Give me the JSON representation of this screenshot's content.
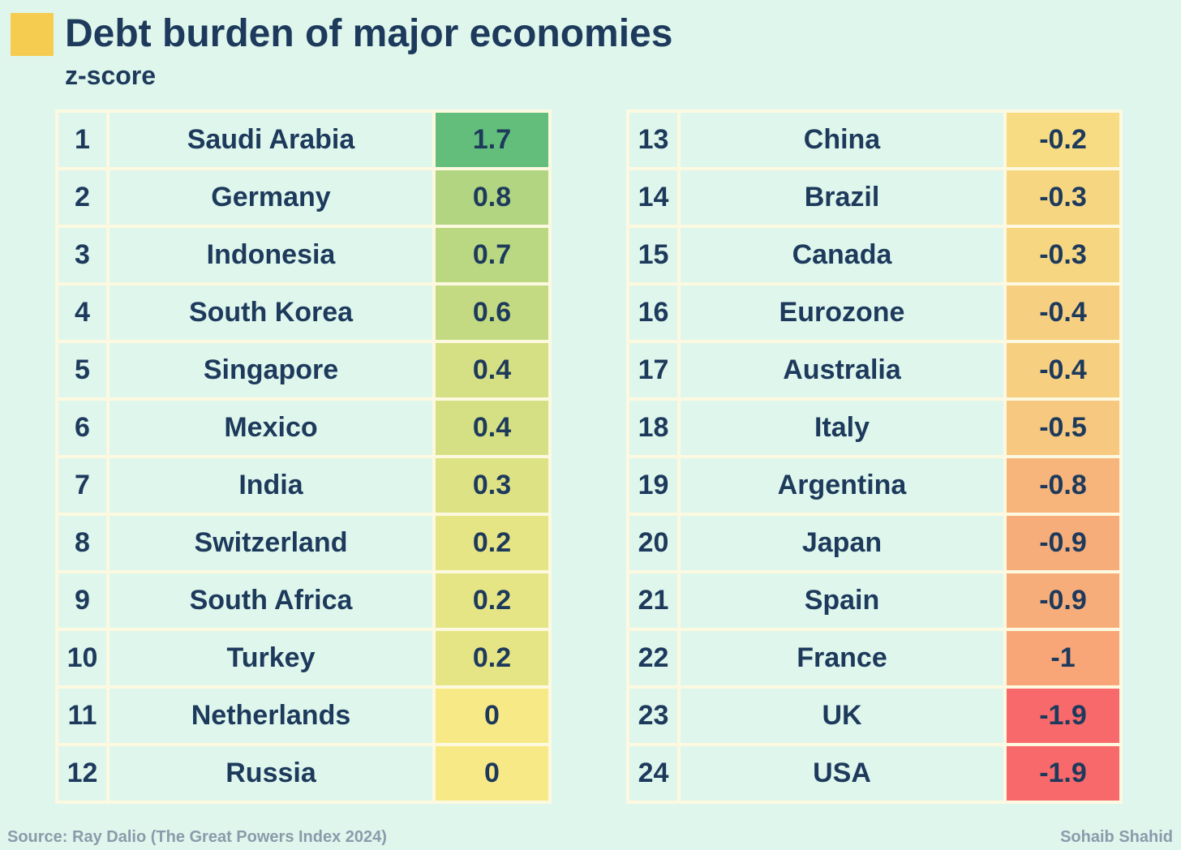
{
  "header": {
    "title": "Debt burden of major economies",
    "subtitle": "z-score"
  },
  "footer": {
    "source": "Source: Ray Dalio (The Great Powers Index 2024)",
    "author": "Sohaib Shahid"
  },
  "colors": {
    "background": "#dff6ec",
    "accent": "#f5cc4f",
    "text": "#1d3a5c",
    "grid": "#fdf9e0",
    "scale_high": "#63be7b",
    "scale_mid": "#f7ea86",
    "scale_low": "#f8696b"
  },
  "chart_data": {
    "type": "table",
    "title": "Debt burden of major economies",
    "subtitle": "z-score",
    "columns": [
      "rank",
      "country",
      "z-score"
    ],
    "color_scale": {
      "min": -1.9,
      "mid": 0,
      "max": 1.7
    },
    "rows": [
      {
        "rank": "1",
        "country": "Saudi Arabia",
        "value": "1.7"
      },
      {
        "rank": "2",
        "country": "Germany",
        "value": "0.8"
      },
      {
        "rank": "3",
        "country": "Indonesia",
        "value": "0.7"
      },
      {
        "rank": "4",
        "country": "South Korea",
        "value": "0.6"
      },
      {
        "rank": "5",
        "country": "Singapore",
        "value": "0.4"
      },
      {
        "rank": "6",
        "country": "Mexico",
        "value": "0.4"
      },
      {
        "rank": "7",
        "country": "India",
        "value": "0.3"
      },
      {
        "rank": "8",
        "country": "Switzerland",
        "value": "0.2"
      },
      {
        "rank": "9",
        "country": "South Africa",
        "value": "0.2"
      },
      {
        "rank": "10",
        "country": "Turkey",
        "value": "0.2"
      },
      {
        "rank": "11",
        "country": "Netherlands",
        "value": "0"
      },
      {
        "rank": "12",
        "country": "Russia",
        "value": "0"
      },
      {
        "rank": "13",
        "country": "China",
        "value": "-0.2"
      },
      {
        "rank": "14",
        "country": "Brazil",
        "value": "-0.3"
      },
      {
        "rank": "15",
        "country": "Canada",
        "value": "-0.3"
      },
      {
        "rank": "16",
        "country": "Eurozone",
        "value": "-0.4"
      },
      {
        "rank": "17",
        "country": "Australia",
        "value": "-0.4"
      },
      {
        "rank": "18",
        "country": "Italy",
        "value": "-0.5"
      },
      {
        "rank": "19",
        "country": "Argentina",
        "value": "-0.8"
      },
      {
        "rank": "20",
        "country": "Japan",
        "value": "-0.9"
      },
      {
        "rank": "21",
        "country": "Spain",
        "value": "-0.9"
      },
      {
        "rank": "22",
        "country": "France",
        "value": "-1"
      },
      {
        "rank": "23",
        "country": "UK",
        "value": "-1.9"
      },
      {
        "rank": "24",
        "country": "USA",
        "value": "-1.9"
      }
    ]
  }
}
